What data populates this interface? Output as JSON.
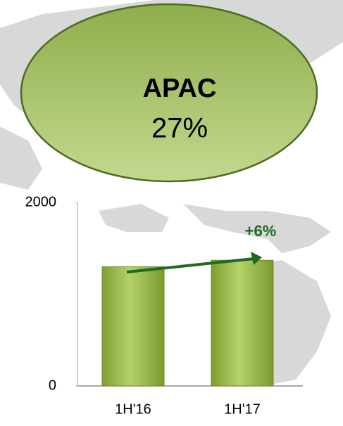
{
  "chart_data": {
    "type": "bar",
    "callout": {
      "title": "APAC",
      "text": "27%"
    },
    "categories": [
      "1H'16",
      "1H'17"
    ],
    "values": [
      1300,
      1370
    ],
    "color": "#8fb33f",
    "ylim": [
      0,
      2000
    ],
    "yticks": [
      0,
      2000
    ],
    "annotation": "+6%"
  }
}
